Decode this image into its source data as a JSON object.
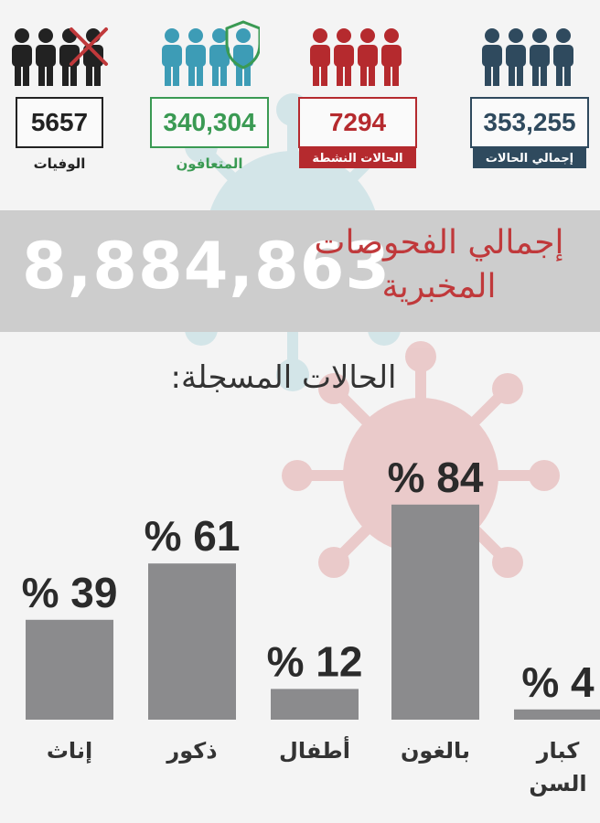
{
  "stats": [
    {
      "id": "total",
      "value": "353,255",
      "label": "إجمالي الحالات",
      "color": "#2f4a5e",
      "tag": true
    },
    {
      "id": "active",
      "value": "7294",
      "label": "الحالات النشطة",
      "color": "#b52a2e",
      "tag": true
    },
    {
      "id": "recovered",
      "value": "340,304",
      "label": "المتعافون",
      "color": "#3a9a53",
      "people_color": "#3d9cb6",
      "tag": false
    },
    {
      "id": "deaths",
      "value": "5657",
      "label": "الوفيات",
      "color": "#222222",
      "tag": false
    }
  ],
  "icons": {
    "deaths_cross": "x-mark-icon",
    "recovered_shield": "shield-icon",
    "cross_color": "#c0393b",
    "shield_color": "#3a9a53"
  },
  "tests": {
    "value": "8,884,863",
    "label_line1": "إجمالي الفحوصات",
    "label_line2": "المخبرية"
  },
  "registered_title": "الحالات المسجلة:",
  "chart_data": {
    "type": "bar",
    "categories": [
      "إناث",
      "ذكور",
      "أطفال",
      "بالغون",
      "كبار السن"
    ],
    "values": [
      39,
      61,
      12,
      84,
      4
    ],
    "value_labels": [
      "% 39",
      "% 61",
      "% 12",
      "% 84",
      "% 4"
    ],
    "ylim": [
      0,
      100
    ],
    "bar_color": "#8b8b8d",
    "grid": false
  }
}
